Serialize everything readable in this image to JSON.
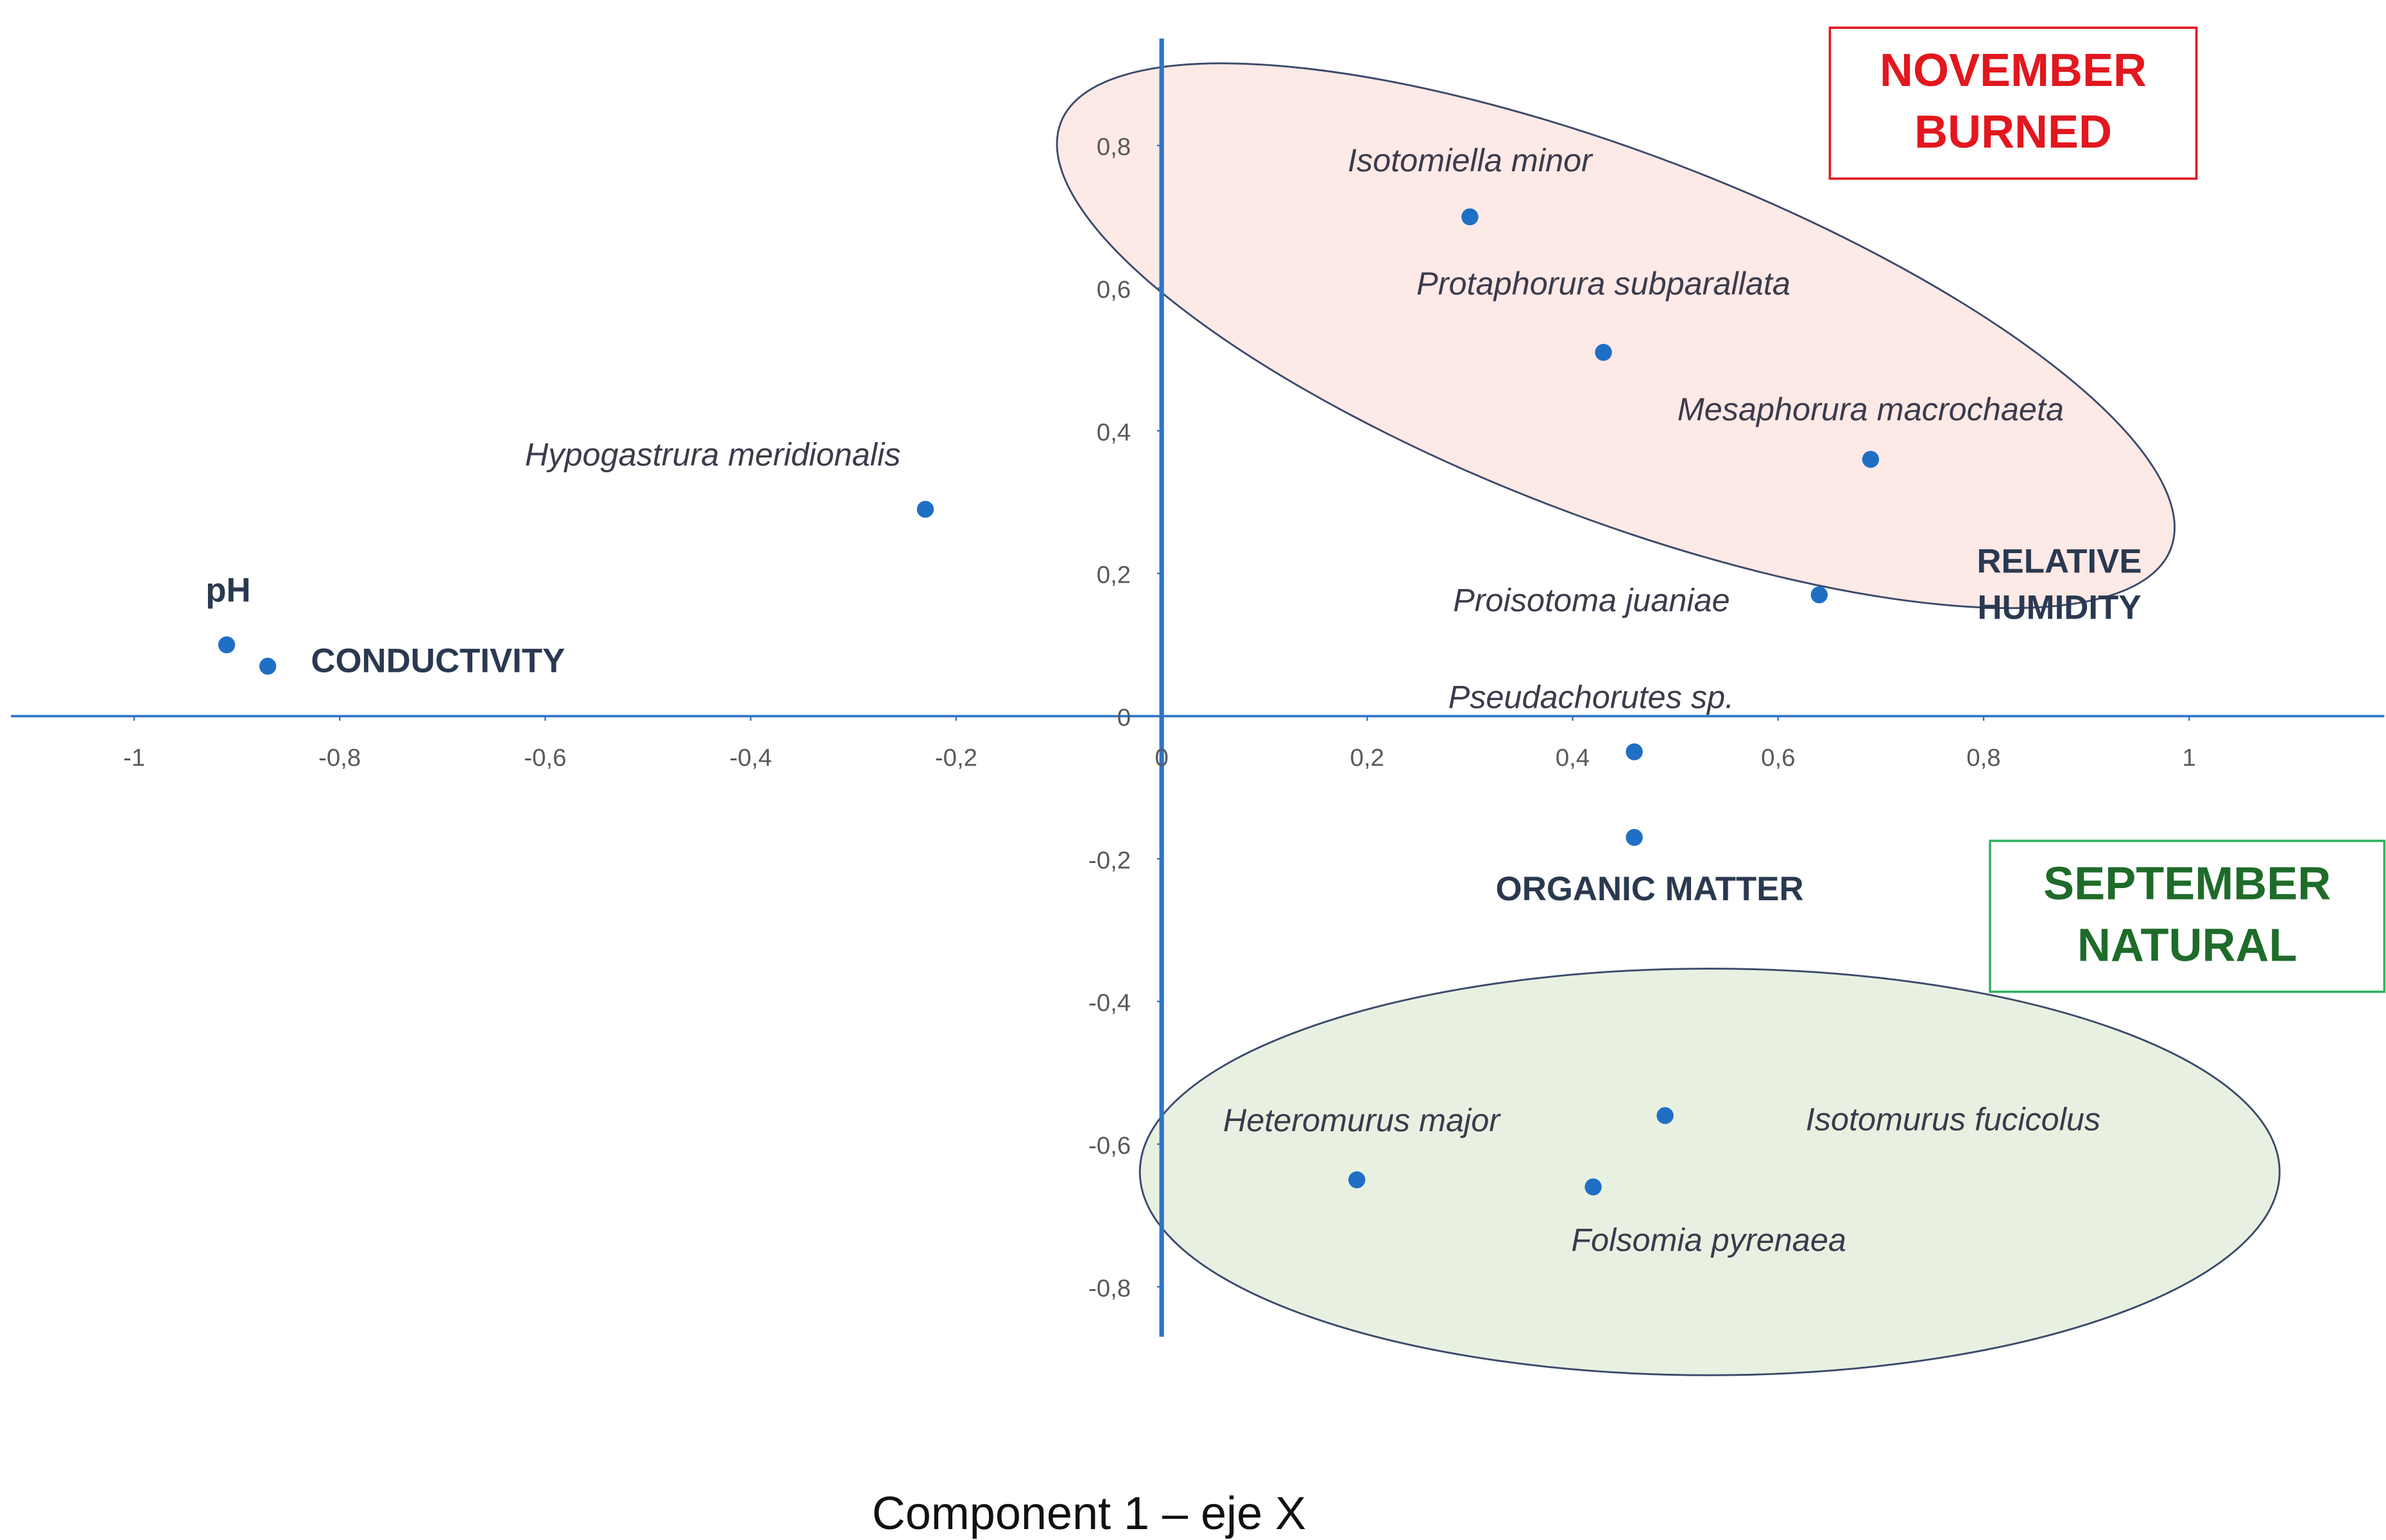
{
  "chart_data": {
    "type": "scatter",
    "x_axis_label": "Component 1 – eje X",
    "xlim": [
      -1.12,
      1.19
    ],
    "ylim": [
      -0.87,
      0.95
    ],
    "xticks": [
      -1,
      {
        "value": -0.8,
        "label": "-0,8"
      },
      {
        "value": -0.6,
        "label": "-0,6"
      },
      {
        "value": -0.4,
        "label": "-0,4"
      },
      {
        "value": -0.2,
        "label": "-0,2"
      },
      0,
      {
        "value": 0.2,
        "label": "0,2"
      },
      {
        "value": 0.4,
        "label": "0,4"
      },
      {
        "value": 0.6,
        "label": "0,6"
      },
      {
        "value": 0.8,
        "label": "0,8"
      },
      1
    ],
    "yticks": [
      {
        "value": -0.8,
        "label": "-0,8"
      },
      {
        "value": -0.6,
        "label": "-0,6"
      },
      {
        "value": -0.4,
        "label": "-0,4"
      },
      {
        "value": -0.2,
        "label": "-0,2"
      },
      0,
      {
        "value": 0.2,
        "label": "0,2"
      },
      {
        "value": 0.4,
        "label": "0,4"
      },
      {
        "value": 0.6,
        "label": "0,6"
      },
      {
        "value": 0.8,
        "label": "0,8"
      }
    ],
    "color": "#1f6fc5",
    "species": [
      {
        "label": "Isotomiella minor",
        "x": 0.3,
        "y": 0.7
      },
      {
        "label": "Protaphorura subparallata",
        "x": 0.43,
        "y": 0.51
      },
      {
        "label": "Mesaphorura macrochaeta",
        "x": 0.69,
        "y": 0.36
      },
      {
        "label": "Hypogastrura meridionalis",
        "x": -0.23,
        "y": 0.29
      },
      {
        "label": "Proisotoma juaniae",
        "x": 0.64,
        "y": 0.17
      },
      {
        "label": "Pseudachorutes sp.",
        "x": 0.46,
        "y": -0.05
      },
      {
        "label": "Isotomurus fucicolus",
        "x": 0.49,
        "y": -0.56
      },
      {
        "label": "Heteromurus major",
        "x": 0.19,
        "y": -0.65
      },
      {
        "label": "Folsomia pyrenaea",
        "x": 0.42,
        "y": -0.66
      }
    ],
    "variables": [
      {
        "label": "pH",
        "x": -0.91,
        "y": 0.1
      },
      {
        "label": "CONDUCTIVITY",
        "x": -0.87,
        "y": 0.07
      },
      {
        "label": "ORGANIC MATTER",
        "x": 0.46,
        "y": -0.17
      }
    ],
    "annotations": [
      {
        "lines": [
          "RELATIVE",
          "HUMIDITY"
        ]
      }
    ],
    "groups": [
      {
        "lines": [
          "NOVEMBER",
          "BURNED"
        ],
        "color": "#e3171e"
      },
      {
        "lines": [
          "SEPTEMBER",
          "NATURAL"
        ],
        "color": "#1e6b2a"
      }
    ]
  }
}
